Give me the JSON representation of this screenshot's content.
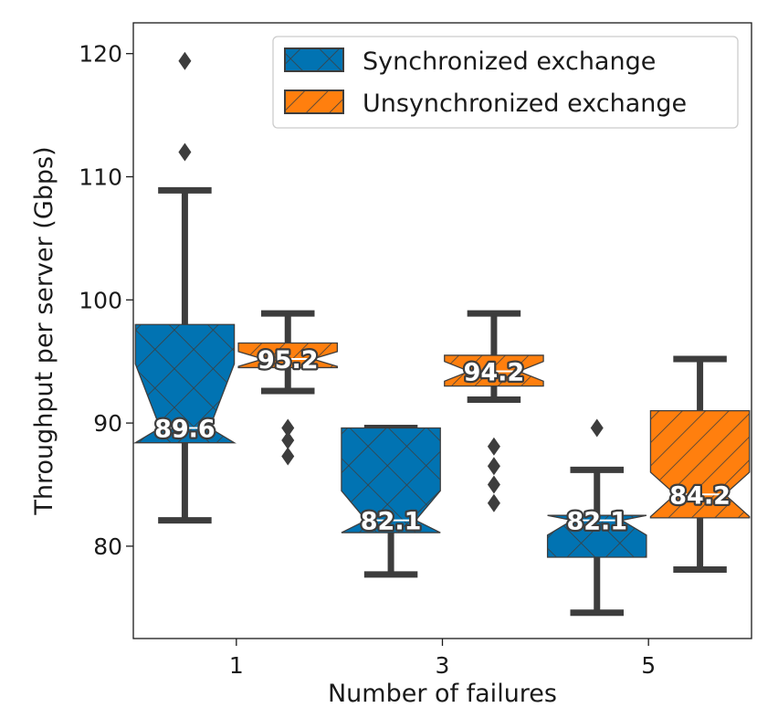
{
  "chart_data": {
    "type": "box",
    "xlabel": "Number of failures",
    "ylabel": "Throughput per server (Gbps)",
    "categories": [
      "1",
      "3",
      "5"
    ],
    "ylim": [
      72.5,
      122.5
    ],
    "yticks": [
      80,
      90,
      100,
      110,
      120
    ],
    "legend_position": "top-right",
    "grid": false,
    "series": [
      {
        "name": "Synchronized exchange",
        "color": "#0173b2",
        "hatch": "cross",
        "boxes": [
          {
            "category": "1",
            "q1": 88.4,
            "median": 89.6,
            "q3": 98.0,
            "whisker_low": 82.1,
            "whisker_high": 108.9,
            "notch_low": 84.4,
            "notch_high": 94.8,
            "outliers": [
              119.4,
              112.0
            ],
            "median_label": "89.6"
          },
          {
            "category": "3",
            "q1": 81.1,
            "median": 82.1,
            "q3": 89.6,
            "whisker_low": 77.7,
            "whisker_high": 89.6,
            "notch_low": 79.7,
            "notch_high": 84.5,
            "outliers": [],
            "median_label": "82.1"
          },
          {
            "category": "5",
            "q1": 79.1,
            "median": 82.1,
            "q3": 82.5,
            "whisker_low": 74.6,
            "whisker_high": 86.2,
            "notch_low": 80.9,
            "notch_high": 83.3,
            "outliers": [
              89.6
            ],
            "median_label": "82.1"
          }
        ]
      },
      {
        "name": "Unsynchronized exchange",
        "color": "#ff7f0e",
        "hatch": "diagonal",
        "boxes": [
          {
            "category": "1",
            "q1": 94.5,
            "median": 95.2,
            "q3": 96.5,
            "whisker_low": 92.6,
            "whisker_high": 98.9,
            "notch_low": 94.6,
            "notch_high": 95.8,
            "outliers": [
              89.6,
              88.6,
              87.3
            ],
            "median_label": "95.2"
          },
          {
            "category": "3",
            "q1": 93.0,
            "median": 94.2,
            "q3": 95.5,
            "whisker_low": 91.9,
            "whisker_high": 98.9,
            "notch_low": 93.4,
            "notch_high": 95.0,
            "outliers": [
              88.1,
              86.5,
              85.0,
              83.5
            ],
            "median_label": "94.2"
          },
          {
            "category": "5",
            "q1": 82.3,
            "median": 84.2,
            "q3": 91.0,
            "whisker_low": 78.1,
            "whisker_high": 95.2,
            "notch_low": 82.4,
            "notch_high": 86.0,
            "outliers": [],
            "median_label": "84.2"
          }
        ]
      }
    ]
  }
}
